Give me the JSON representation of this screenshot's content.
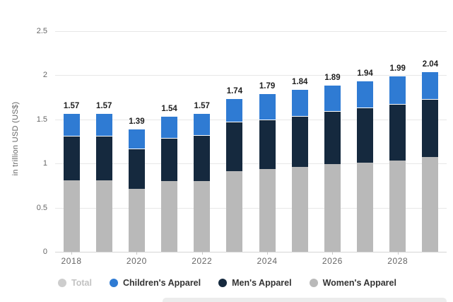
{
  "y_axis_title": "in trillion USD (US$)",
  "chart_data": {
    "type": "bar",
    "stacked": true,
    "title": "",
    "xlabel": "",
    "ylabel": "in trillion USD (US$)",
    "ylim": [
      0,
      2.5
    ],
    "y_tick_labels": [
      "0",
      "0.5",
      "1",
      "1.5",
      "2",
      "2.5"
    ],
    "y_tick_values": [
      0,
      0.5,
      1,
      1.5,
      2,
      2.5
    ],
    "grid": true,
    "categories": [
      "2018",
      "2019",
      "2020",
      "2021",
      "2022",
      "2023",
      "2024",
      "2025",
      "2026",
      "2027",
      "2028",
      "2029"
    ],
    "x_labeled_categories": [
      "2018",
      "2020",
      "2022",
      "2024",
      "2026",
      "2028"
    ],
    "series": [
      {
        "name": "Women's Apparel",
        "color": "#b9b9b9",
        "values": [
          0.81,
          0.81,
          0.71,
          0.8,
          0.8,
          0.91,
          0.94,
          0.96,
          0.99,
          1.01,
          1.03,
          1.07
        ]
      },
      {
        "name": "Men's Apparel",
        "color": "#15293e",
        "values": [
          0.5,
          0.5,
          0.46,
          0.49,
          0.52,
          0.56,
          0.56,
          0.58,
          0.6,
          0.62,
          0.64,
          0.66
        ]
      },
      {
        "name": "Children's Apparel",
        "color": "#2f7bd3",
        "values": [
          0.26,
          0.26,
          0.22,
          0.25,
          0.25,
          0.27,
          0.29,
          0.3,
          0.3,
          0.31,
          0.32,
          0.31
        ]
      }
    ],
    "total_labels": [
      "1.57",
      "1.57",
      "1.39",
      "1.54",
      "1.57",
      "1.74",
      "1.79",
      "1.84",
      "1.89",
      "1.94",
      "1.99",
      "2.04"
    ],
    "legend_position": "bottom",
    "legend": [
      {
        "label": "Total",
        "color": "#cdcdcd",
        "disabled": true
      },
      {
        "label": "Children's Apparel",
        "color": "#2f7bd3",
        "disabled": false
      },
      {
        "label": "Men's Apparel",
        "color": "#15293e",
        "disabled": false
      },
      {
        "label": "Women's Apparel",
        "color": "#b9b9b9",
        "disabled": false
      }
    ],
    "colors": {
      "gridline": "#e7e7e7",
      "axis_text": "#666666",
      "data_label": "#1f1f1f"
    }
  }
}
